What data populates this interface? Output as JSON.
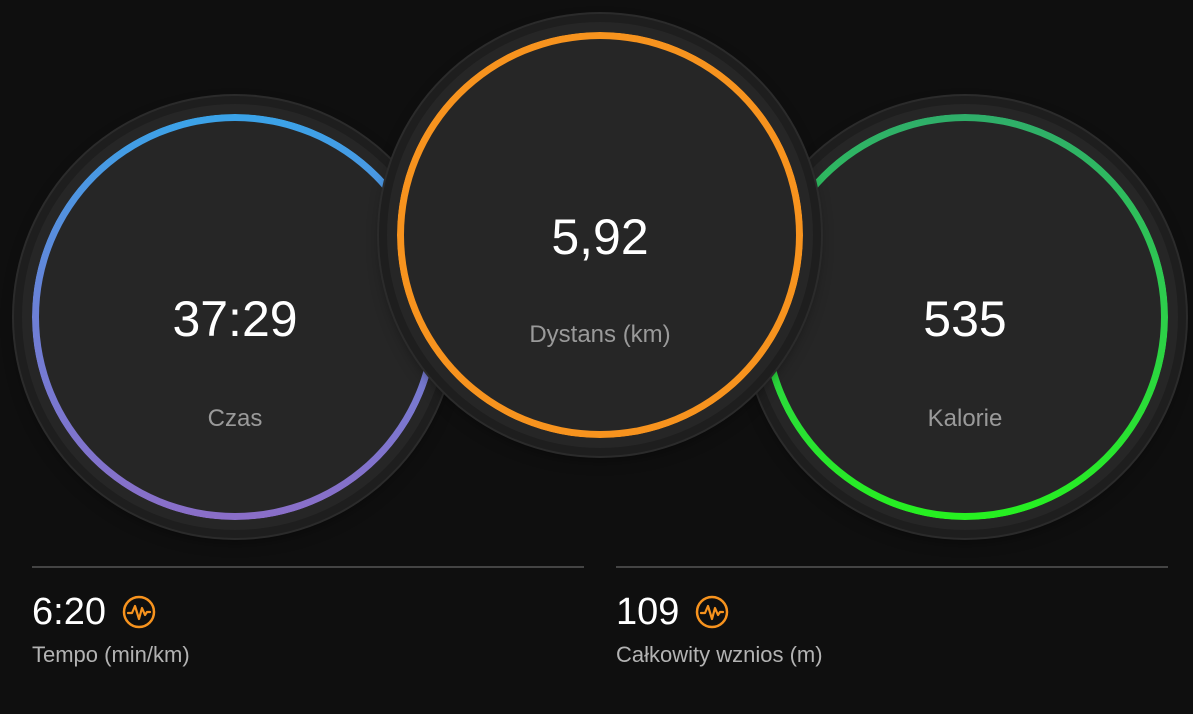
{
  "rings": {
    "time": {
      "value": "37:29",
      "label": "Czas",
      "color_top": "#3aa3e8",
      "color_bottom": "#8a6ec8"
    },
    "distance": {
      "value": "5,92",
      "label": "Dystans (km)",
      "color": "#f7931e"
    },
    "calories": {
      "value": "535",
      "label": "Kalorie",
      "color_top": "#2fae6a",
      "color_bottom": "#26f020"
    }
  },
  "stats": {
    "pace": {
      "value": "6:20",
      "label": "Tempo (min/km)",
      "icon": "heart-rate-badge-icon"
    },
    "ascent": {
      "value": "109",
      "label": "Całkowity wznios (m)",
      "icon": "heart-rate-badge-icon"
    }
  },
  "colors": {
    "background": "#0f0f0f",
    "badge": "#f7931e"
  }
}
